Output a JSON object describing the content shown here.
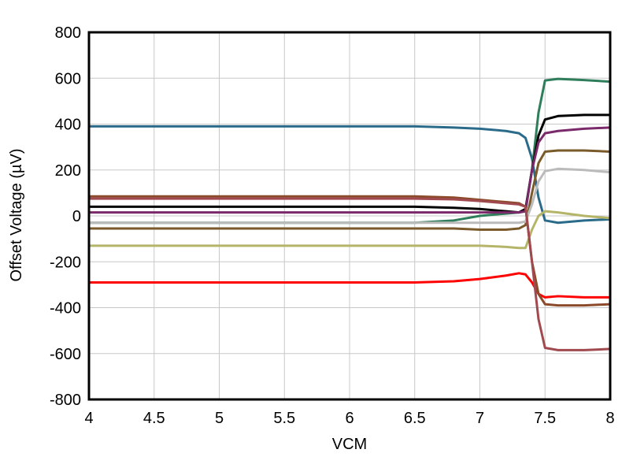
{
  "chart_data": {
    "type": "line",
    "xlabel": "VCM",
    "ylabel": "Offset Voltage (µV)",
    "x": [
      4,
      5,
      6,
      6.5,
      6.8,
      7,
      7.2,
      7.3,
      7.35,
      7.4,
      7.45,
      7.5,
      7.6,
      7.8,
      8
    ],
    "xlim": [
      4,
      8
    ],
    "xticks": [
      4,
      4.5,
      5,
      5.5,
      6,
      6.5,
      7,
      7.5,
      8
    ],
    "ylim": [
      -800,
      800
    ],
    "yticks": [
      -800,
      -600,
      -400,
      -200,
      0,
      200,
      400,
      600,
      800
    ],
    "grid": true,
    "series": [
      {
        "color": "#2b6b8a",
        "values": [
          390,
          390,
          390,
          390,
          385,
          380,
          370,
          360,
          340,
          250,
          80,
          -20,
          -30,
          -20,
          -15
        ]
      },
      {
        "color": "#2e7d5b",
        "values": [
          -30,
          -30,
          -30,
          -30,
          -20,
          0,
          10,
          15,
          20,
          200,
          450,
          590,
          597,
          592,
          585
        ]
      },
      {
        "color": "#000000",
        "values": [
          40,
          40,
          40,
          40,
          35,
          30,
          20,
          15,
          30,
          200,
          350,
          420,
          435,
          440,
          440
        ]
      },
      {
        "color": "#7a2a6a",
        "values": [
          15,
          15,
          15,
          15,
          15,
          15,
          15,
          15,
          20,
          200,
          320,
          360,
          370,
          380,
          385
        ]
      },
      {
        "color": "#7a5a2a",
        "values": [
          -55,
          -55,
          -55,
          -55,
          -55,
          -60,
          -60,
          -55,
          -40,
          100,
          230,
          280,
          285,
          285,
          280
        ]
      },
      {
        "color": "#bbbbbb",
        "values": [
          -30,
          -30,
          -30,
          -30,
          -30,
          -30,
          -30,
          -30,
          -25,
          50,
          150,
          195,
          205,
          200,
          190
        ]
      },
      {
        "color": "#b5b56a",
        "values": [
          -130,
          -130,
          -130,
          -130,
          -130,
          -130,
          -135,
          -140,
          -140,
          -60,
          0,
          20,
          15,
          0,
          -10
        ]
      },
      {
        "color": "#ff0000",
        "values": [
          -290,
          -290,
          -290,
          -290,
          -285,
          -275,
          -260,
          -250,
          -255,
          -290,
          -340,
          -355,
          -350,
          -355,
          -355
        ]
      },
      {
        "color": "#8b4a2a",
        "values": [
          85,
          85,
          85,
          85,
          80,
          70,
          60,
          55,
          40,
          -200,
          -340,
          -385,
          -390,
          -390,
          -385
        ]
      },
      {
        "color": "#a04a50",
        "values": [
          75,
          75,
          75,
          75,
          72,
          65,
          55,
          50,
          40,
          -200,
          -450,
          -575,
          -585,
          -585,
          -580
        ]
      }
    ]
  }
}
